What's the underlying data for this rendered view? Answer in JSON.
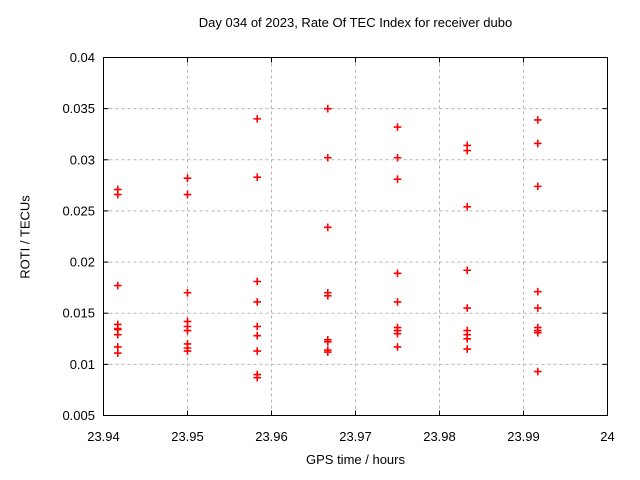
{
  "title": "Day 034 of 2023, Rate Of TEC Index for receiver dubo",
  "colors": {
    "marker": "#ff0000",
    "grid": "#b4b4b4",
    "axis": "#000000",
    "background": "#ffffff",
    "text": "#000000"
  },
  "chart_data": {
    "type": "scatter",
    "marker": "plus",
    "title": "Day 034 of 2023, Rate Of TEC Index for receiver dubo",
    "xlabel": "GPS time / hours",
    "ylabel": "ROTI / TECUs",
    "xlim": [
      23.94,
      24
    ],
    "ylim": [
      0.005,
      0.04
    ],
    "grid": true,
    "legend": "none",
    "xticks": [
      23.94,
      23.95,
      23.96,
      23.97,
      23.98,
      23.99,
      24
    ],
    "xtick_labels": [
      "23.94",
      "23.95",
      "23.96",
      "23.97",
      "23.98",
      "23.99",
      "24"
    ],
    "yticks": [
      0.005,
      0.01,
      0.015,
      0.02,
      0.025,
      0.03,
      0.035,
      0.04
    ],
    "ytick_labels": [
      "0.005",
      "0.01",
      "0.015",
      "0.02",
      "0.025",
      "0.03",
      "0.035",
      "0.04"
    ],
    "series": [
      {
        "name": "ROTI",
        "points": [
          [
            23.9417,
            0.0271
          ],
          [
            23.9417,
            0.0266
          ],
          [
            23.9417,
            0.0177
          ],
          [
            23.9417,
            0.0139
          ],
          [
            23.9417,
            0.0135
          ],
          [
            23.9417,
            0.0134
          ],
          [
            23.9417,
            0.0129
          ],
          [
            23.9417,
            0.0117
          ],
          [
            23.9417,
            0.0111
          ],
          [
            23.95,
            0.0282
          ],
          [
            23.95,
            0.0266
          ],
          [
            23.95,
            0.017
          ],
          [
            23.95,
            0.0142
          ],
          [
            23.95,
            0.0137
          ],
          [
            23.95,
            0.0133
          ],
          [
            23.95,
            0.012
          ],
          [
            23.95,
            0.0116
          ],
          [
            23.95,
            0.0113
          ],
          [
            23.9583,
            0.034
          ],
          [
            23.9583,
            0.0283
          ],
          [
            23.9583,
            0.0181
          ],
          [
            23.9583,
            0.0161
          ],
          [
            23.9583,
            0.0137
          ],
          [
            23.9583,
            0.0128
          ],
          [
            23.9583,
            0.0113
          ],
          [
            23.9583,
            0.009
          ],
          [
            23.9583,
            0.0087
          ],
          [
            23.9667,
            0.035
          ],
          [
            23.9667,
            0.0302
          ],
          [
            23.9667,
            0.0234
          ],
          [
            23.9667,
            0.017
          ],
          [
            23.9667,
            0.0167
          ],
          [
            23.9667,
            0.0124
          ],
          [
            23.9667,
            0.0122
          ],
          [
            23.9667,
            0.0114
          ],
          [
            23.9667,
            0.0112
          ],
          [
            23.975,
            0.0332
          ],
          [
            23.975,
            0.0302
          ],
          [
            23.975,
            0.0281
          ],
          [
            23.975,
            0.0189
          ],
          [
            23.975,
            0.0161
          ],
          [
            23.975,
            0.0136
          ],
          [
            23.975,
            0.0133
          ],
          [
            23.975,
            0.013
          ],
          [
            23.975,
            0.0117
          ],
          [
            23.9833,
            0.0314
          ],
          [
            23.9833,
            0.0309
          ],
          [
            23.9833,
            0.0254
          ],
          [
            23.9833,
            0.0192
          ],
          [
            23.9833,
            0.0155
          ],
          [
            23.9833,
            0.0133
          ],
          [
            23.9833,
            0.0129
          ],
          [
            23.9833,
            0.0125
          ],
          [
            23.9833,
            0.0115
          ],
          [
            23.9917,
            0.0339
          ],
          [
            23.9917,
            0.0316
          ],
          [
            23.9917,
            0.0274
          ],
          [
            23.9917,
            0.0171
          ],
          [
            23.9917,
            0.0155
          ],
          [
            23.9917,
            0.0136
          ],
          [
            23.9917,
            0.0133
          ],
          [
            23.9917,
            0.0131
          ],
          [
            23.9917,
            0.0093
          ]
        ]
      }
    ]
  }
}
